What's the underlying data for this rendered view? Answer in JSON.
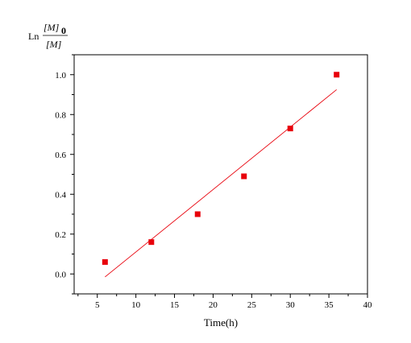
{
  "chart_data": {
    "type": "scatter",
    "xlabel": "Time(h)",
    "ylabel": {
      "prefix": "Ln",
      "numerator": "[M]",
      "numerator_subscript": "0",
      "denominator": "[M]"
    },
    "xlim": [
      2,
      40
    ],
    "ylim": [
      -0.1,
      1.1
    ],
    "x_ticks": [
      5,
      10,
      15,
      20,
      25,
      30,
      35,
      40
    ],
    "y_ticks": [
      0.0,
      0.2,
      0.4,
      0.6,
      0.8,
      1.0
    ],
    "x_tick_labels": [
      "5",
      "10",
      "15",
      "20",
      "25",
      "30",
      "35",
      "40"
    ],
    "y_tick_labels": [
      "0.0",
      "0.2",
      "0.4",
      "0.6",
      "0.8",
      "1.0"
    ],
    "series": [
      {
        "type": "scatter",
        "color": "#e8000b",
        "x": [
          6,
          12,
          18,
          24,
          30,
          36
        ],
        "y": [
          0.06,
          0.16,
          0.3,
          0.49,
          0.73,
          1.0
        ]
      },
      {
        "type": "line",
        "color": "#e8000b",
        "x": [
          6,
          36
        ],
        "y": [
          -0.015,
          0.925
        ]
      }
    ],
    "grid": false,
    "legend": "none"
  }
}
